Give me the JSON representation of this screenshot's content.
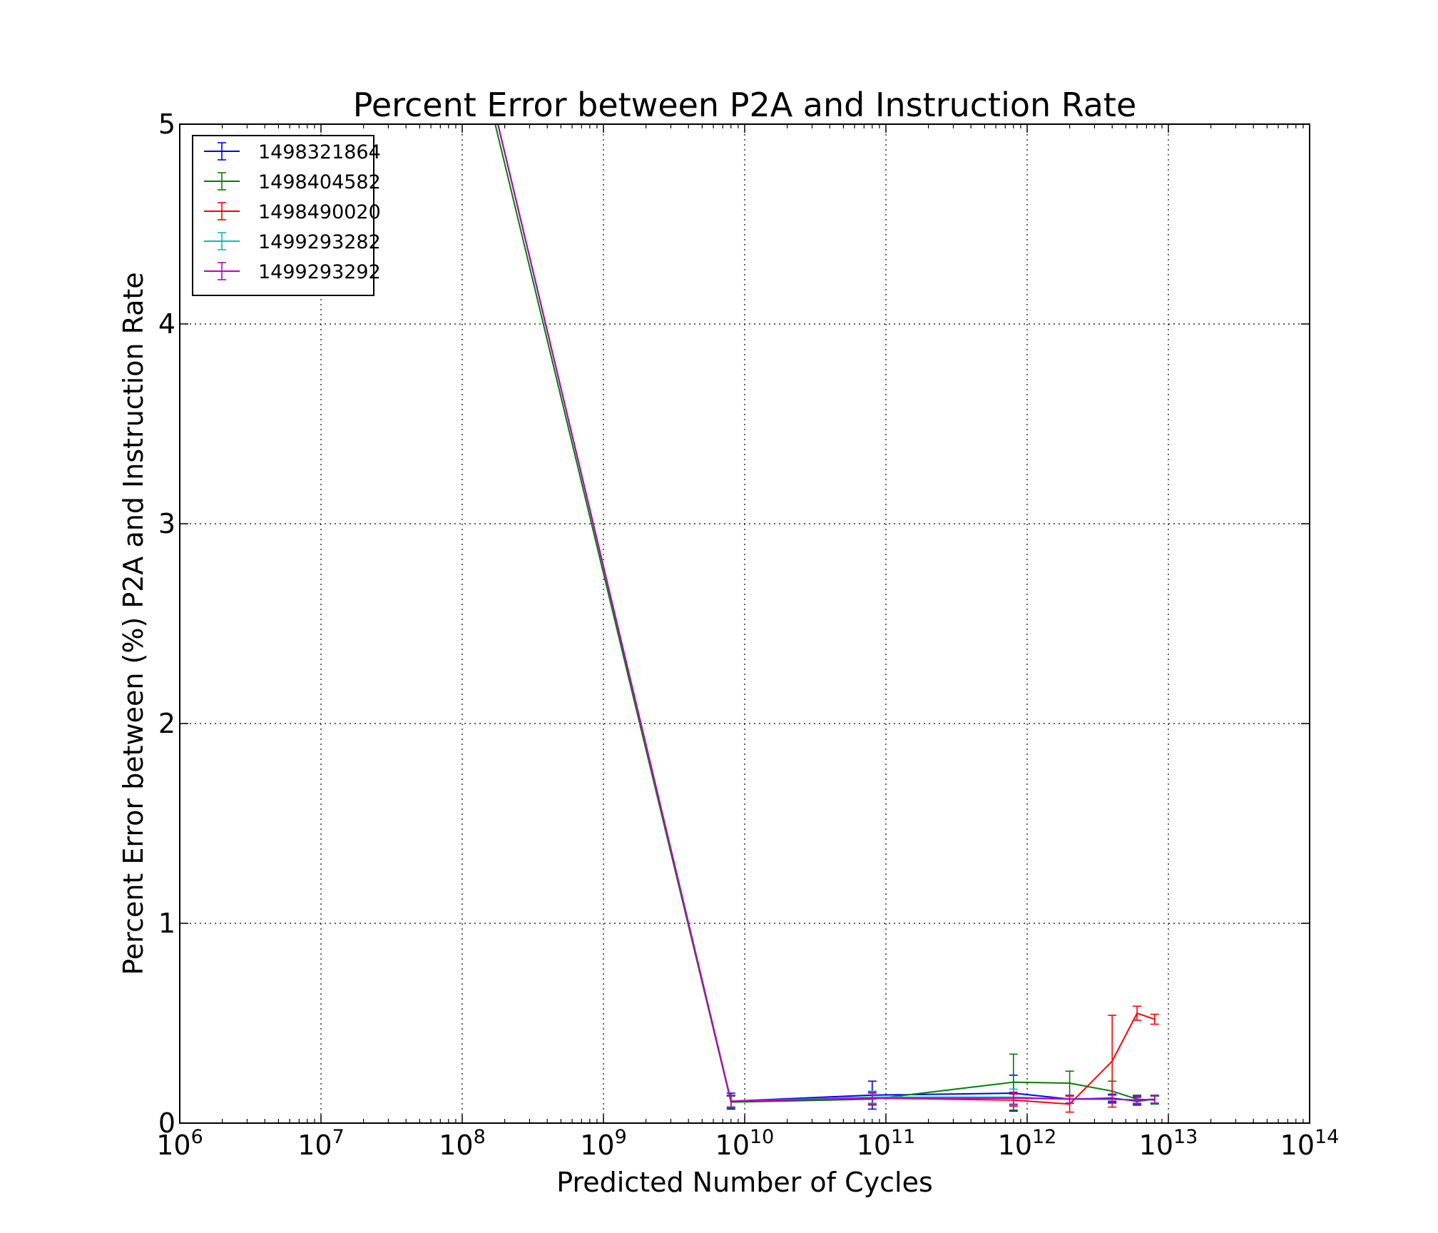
{
  "chart_data": {
    "type": "line",
    "title": "Percent Error between P2A and Instruction Rate",
    "xlabel": "Predicted Number of Cycles",
    "ylabel": "Percent Error between (%) P2A and Instruction Rate",
    "xscale": "log",
    "xlim": [
      1000000,
      100000000000000
    ],
    "ylim": [
      0,
      5
    ],
    "x_ticks": [
      {
        "base": "10",
        "exp": "6",
        "value": 1000000
      },
      {
        "base": "10",
        "exp": "7",
        "value": 10000000
      },
      {
        "base": "10",
        "exp": "8",
        "value": 100000000
      },
      {
        "base": "10",
        "exp": "9",
        "value": 1000000000
      },
      {
        "base": "10",
        "exp": "10",
        "value": 10000000000
      },
      {
        "base": "10",
        "exp": "11",
        "value": 100000000000
      },
      {
        "base": "10",
        "exp": "12",
        "value": 1000000000000
      },
      {
        "base": "10",
        "exp": "13",
        "value": 10000000000000
      },
      {
        "base": "10",
        "exp": "14",
        "value": 100000000000000
      }
    ],
    "y_ticks": [
      "0",
      "1",
      "2",
      "3",
      "4",
      "5"
    ],
    "grid": true,
    "legend_position": "top-left",
    "series": [
      {
        "name": "1498321864",
        "color": "#0000ff",
        "points": [
          {
            "x": 8000000,
            "y": 9.0
          },
          {
            "x": 8000000000,
            "y": 0.11,
            "err": 0.04
          },
          {
            "x": 80000000000,
            "y": 0.14,
            "err": 0.07
          },
          {
            "x": 800000000000,
            "y": 0.15,
            "err": 0.09
          },
          {
            "x": 2000000000000,
            "y": 0.12,
            "err": 0.02
          },
          {
            "x": 4000000000000,
            "y": 0.125,
            "err": 0.02
          },
          {
            "x": 6000000000000,
            "y": 0.11,
            "err": 0.02
          },
          {
            "x": 8000000000000,
            "y": 0.12,
            "err": 0.02
          }
        ]
      },
      {
        "name": "1498404582",
        "color": "#008000",
        "points": [
          {
            "x": 8000000,
            "y": 8.9
          },
          {
            "x": 8000000000,
            "y": 0.105,
            "err": 0.03
          },
          {
            "x": 80000000000,
            "y": 0.12,
            "err": 0.03
          },
          {
            "x": 800000000000,
            "y": 0.205,
            "err": 0.14
          },
          {
            "x": 2000000000000,
            "y": 0.2,
            "err": 0.06
          },
          {
            "x": 4000000000000,
            "y": 0.16,
            "err": 0.05
          },
          {
            "x": 6000000000000,
            "y": 0.12,
            "err": 0.02
          },
          {
            "x": 8000000000000,
            "y": 0.115,
            "err": 0.02
          }
        ]
      },
      {
        "name": "1498490020",
        "color": "#ff0000",
        "points": [
          {
            "x": 8000000,
            "y": 9.0
          },
          {
            "x": 8000000000,
            "y": 0.11,
            "err": 0.03
          },
          {
            "x": 80000000000,
            "y": 0.125,
            "err": 0.03
          },
          {
            "x": 800000000000,
            "y": 0.115,
            "err": 0.03
          },
          {
            "x": 2000000000000,
            "y": 0.095,
            "err": 0.04
          },
          {
            "x": 4000000000000,
            "y": 0.31,
            "err": 0.23
          },
          {
            "x": 6000000000000,
            "y": 0.55,
            "err": 0.035
          },
          {
            "x": 8000000000000,
            "y": 0.52,
            "err": 0.025
          }
        ]
      },
      {
        "name": "1499293282",
        "color": "#00bfbf",
        "points": [
          {
            "x": 8000000,
            "y": 9.0
          },
          {
            "x": 8000000000,
            "y": 0.11,
            "err": 0.03
          },
          {
            "x": 80000000000,
            "y": 0.13,
            "err": 0.03
          },
          {
            "x": 800000000000,
            "y": 0.13,
            "err": 0.04
          },
          {
            "x": 2000000000000,
            "y": 0.12,
            "err": 0.02
          },
          {
            "x": 4000000000000,
            "y": 0.12,
            "err": 0.02
          },
          {
            "x": 6000000000000,
            "y": 0.115,
            "err": 0.02
          },
          {
            "x": 8000000000000,
            "y": 0.12,
            "err": 0.02
          }
        ]
      },
      {
        "name": "1499293292",
        "color": "#bf00bf",
        "points": [
          {
            "x": 8000000,
            "y": 9.0
          },
          {
            "x": 8000000000,
            "y": 0.11,
            "err": 0.03
          },
          {
            "x": 80000000000,
            "y": 0.125,
            "err": 0.03
          },
          {
            "x": 800000000000,
            "y": 0.125,
            "err": 0.03
          },
          {
            "x": 2000000000000,
            "y": 0.12,
            "err": 0.02
          },
          {
            "x": 4000000000000,
            "y": 0.12,
            "err": 0.02
          },
          {
            "x": 6000000000000,
            "y": 0.115,
            "err": 0.02
          },
          {
            "x": 8000000000000,
            "y": 0.12,
            "err": 0.02
          }
        ]
      }
    ]
  }
}
